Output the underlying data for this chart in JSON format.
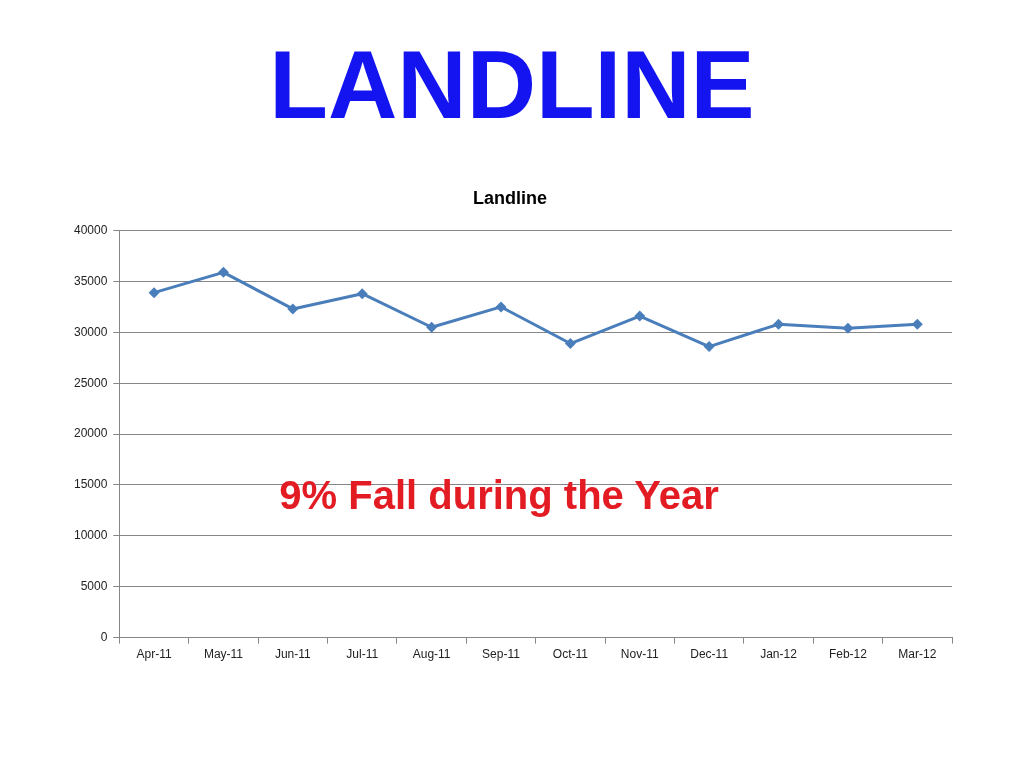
{
  "chart_data": {
    "type": "line",
    "title": "LANDLINE",
    "subtitle": "Landline",
    "categories": [
      "Apr-11",
      "May-11",
      "Jun-11",
      "Jul-11",
      "Aug-11",
      "Sep-11",
      "Oct-11",
      "Nov-11",
      "Dec-11",
      "Jan-12",
      "Feb-12",
      "Mar-12"
    ],
    "series": [
      {
        "color": "#4a7ebb",
        "values": [
          33900,
          35900,
          32300,
          33800,
          30500,
          32500,
          28900,
          31600,
          28600,
          30800,
          30400,
          30800
        ]
      }
    ],
    "ylim": [
      0,
      40000
    ],
    "yticks": [
      0,
      5000,
      10000,
      15000,
      20000,
      25000,
      30000,
      35000,
      40000
    ],
    "grid": "y",
    "legend": false,
    "marker": "diamond",
    "line_style": "solid",
    "annotations": [
      "9% Fall during the Year"
    ]
  }
}
